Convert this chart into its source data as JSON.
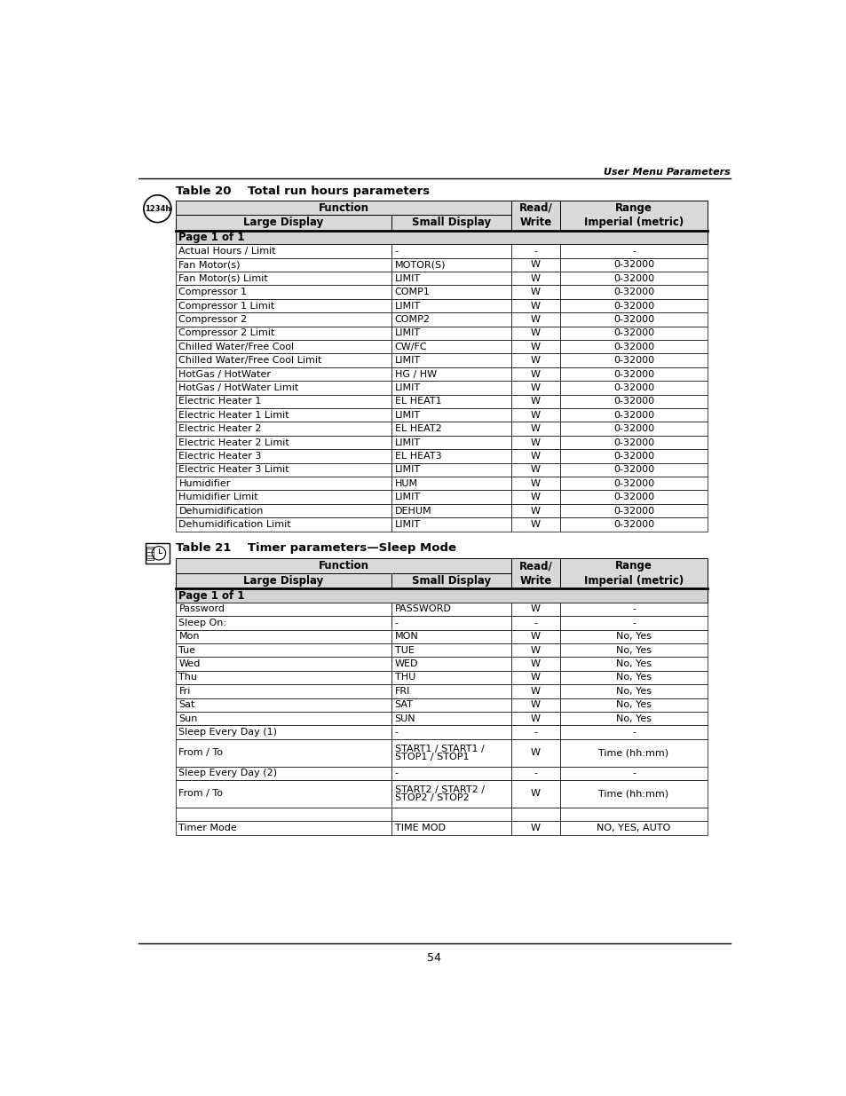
{
  "page_header_right": "User Menu Parameters",
  "page_footer_center": "54",
  "table20_title": "Table 20    Total run hours parameters",
  "table21_title": "Table 21    Timer parameters—Sleep Mode",
  "table20_rows": [
    [
      "Actual Hours / Limit",
      "-",
      "-",
      "-"
    ],
    [
      "Fan Motor(s)",
      "MOTOR(S)",
      "W",
      "0-32000"
    ],
    [
      "Fan Motor(s) Limit",
      "LIMIT",
      "W",
      "0-32000"
    ],
    [
      "Compressor 1",
      "COMP1",
      "W",
      "0-32000"
    ],
    [
      "Compressor 1 Limit",
      "LIMIT",
      "W",
      "0-32000"
    ],
    [
      "Compressor 2",
      "COMP2",
      "W",
      "0-32000"
    ],
    [
      "Compressor 2 Limit",
      "LIMIT",
      "W",
      "0-32000"
    ],
    [
      "Chilled Water/Free Cool",
      "CW/FC",
      "W",
      "0-32000"
    ],
    [
      "Chilled Water/Free Cool Limit",
      "LIMIT",
      "W",
      "0-32000"
    ],
    [
      "HotGas / HotWater",
      "HG / HW",
      "W",
      "0-32000"
    ],
    [
      "HotGas / HotWater Limit",
      "LIMIT",
      "W",
      "0-32000"
    ],
    [
      "Electric Heater 1",
      "EL HEAT1",
      "W",
      "0-32000"
    ],
    [
      "Electric Heater 1 Limit",
      "LIMIT",
      "W",
      "0-32000"
    ],
    [
      "Electric Heater 2",
      "EL HEAT2",
      "W",
      "0-32000"
    ],
    [
      "Electric Heater 2 Limit",
      "LIMIT",
      "W",
      "0-32000"
    ],
    [
      "Electric Heater 3",
      "EL HEAT3",
      "W",
      "0-32000"
    ],
    [
      "Electric Heater 3 Limit",
      "LIMIT",
      "W",
      "0-32000"
    ],
    [
      "Humidifier",
      "HUM",
      "W",
      "0-32000"
    ],
    [
      "Humidifier Limit",
      "LIMIT",
      "W",
      "0-32000"
    ],
    [
      "Dehumidification",
      "DEHUM",
      "W",
      "0-32000"
    ],
    [
      "Dehumidification Limit",
      "LIMIT",
      "W",
      "0-32000"
    ]
  ],
  "table21_rows": [
    [
      "Password",
      "PASSWORD",
      "W",
      "-",
      false,
      false
    ],
    [
      "Sleep On:",
      "-",
      "-",
      "-",
      false,
      false
    ],
    [
      "Mon",
      "MON",
      "W",
      "No, Yes",
      false,
      false
    ],
    [
      "Tue",
      "TUE",
      "W",
      "No, Yes",
      false,
      false
    ],
    [
      "Wed",
      "WED",
      "W",
      "No, Yes",
      false,
      false
    ],
    [
      "Thu",
      "THU",
      "W",
      "No, Yes",
      false,
      false
    ],
    [
      "Fri",
      "FRI",
      "W",
      "No, Yes",
      false,
      false
    ],
    [
      "Sat",
      "SAT",
      "W",
      "No, Yes",
      false,
      false
    ],
    [
      "Sun",
      "SUN",
      "W",
      "No, Yes",
      false,
      false
    ],
    [
      "Sleep Every Day (1)",
      "-",
      "-",
      "-",
      false,
      false
    ],
    [
      "From / To",
      "START1 / START1 /\nSTOP1 / STOP1",
      "W",
      "Time (hh:mm)",
      true,
      false
    ],
    [
      "Sleep Every Day (2)",
      "-",
      "-",
      "-",
      false,
      false
    ],
    [
      "From / To",
      "START2 / START2 /\nSTOP2 / STOP2",
      "W",
      "Time (hh:mm)",
      true,
      false
    ],
    [
      "",
      "",
      "",
      "",
      false,
      false
    ],
    [
      "Timer Mode",
      "TIME MOD",
      "W",
      "NO, YES, AUTO",
      false,
      false
    ]
  ],
  "bg_color": "#ffffff",
  "header_bg": "#d9d9d9",
  "page1of1_bg": "#d3d3d3"
}
